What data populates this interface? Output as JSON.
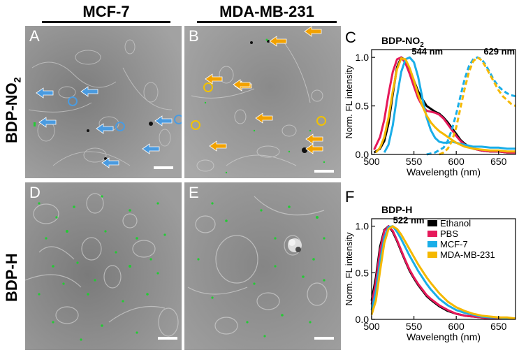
{
  "columns": [
    "MCF-7",
    "MDA-MB-231"
  ],
  "rows": [
    {
      "label": "BDP-NO",
      "sub": "2"
    },
    {
      "label": "BDP-H",
      "sub": ""
    }
  ],
  "panels": {
    "A": "A",
    "B": "B",
    "D": "D",
    "E": "E"
  },
  "colors": {
    "ethanol": "#000000",
    "pbs": "#e6195a",
    "mcf7": "#1aaee8",
    "mda": "#f5b800",
    "arrow_blue": "#4a9be0",
    "arrow_orange": "#f2a200",
    "green": "#22cc33"
  },
  "chart_data": [
    {
      "panel_letter": "C",
      "type": "line",
      "title": "BDP-NO",
      "title_sub": "2",
      "xlabel": "Wavelength (nm)",
      "ylabel": "Norm. FL intensity",
      "xlim": [
        500,
        670
      ],
      "ylim": [
        0,
        1.08
      ],
      "xticks": [
        500,
        550,
        600,
        650
      ],
      "yticks": [
        0.0,
        0.5,
        1.0
      ],
      "annotations": [
        {
          "text": "544 nm",
          "x": 544,
          "y": 1.0
        },
        {
          "text": "629 nm",
          "x": 629,
          "y": 1.0
        }
      ],
      "series": [
        {
          "key": "ethanol",
          "dashed": false,
          "x": [
            503,
            510,
            515,
            520,
            525,
            530,
            535,
            540,
            545,
            550,
            555,
            560,
            565,
            570,
            575,
            580,
            585,
            590,
            595,
            600,
            605,
            610,
            615,
            620,
            630,
            640,
            650,
            660,
            670
          ],
          "y": [
            0.02,
            0.06,
            0.14,
            0.32,
            0.62,
            0.9,
            1.0,
            0.97,
            0.88,
            0.76,
            0.65,
            0.57,
            0.5,
            0.47,
            0.44,
            0.42,
            0.38,
            0.33,
            0.27,
            0.21,
            0.15,
            0.11,
            0.08,
            0.06,
            0.04,
            0.03,
            0.03,
            0.02,
            0.02
          ]
        },
        {
          "key": "pbs",
          "dashed": false,
          "x": [
            503,
            510,
            515,
            520,
            525,
            530,
            535,
            540,
            545,
            550,
            555,
            560,
            565,
            570,
            575,
            580,
            585,
            590,
            595,
            600,
            605,
            610,
            615,
            620,
            630,
            640,
            650,
            660,
            670
          ],
          "y": [
            0.05,
            0.18,
            0.36,
            0.62,
            0.85,
            0.98,
            1.0,
            0.94,
            0.83,
            0.7,
            0.58,
            0.5,
            0.45,
            0.44,
            0.43,
            0.41,
            0.37,
            0.31,
            0.25,
            0.19,
            0.14,
            0.1,
            0.08,
            0.06,
            0.04,
            0.03,
            0.03,
            0.02,
            0.02
          ]
        },
        {
          "key": "mcf7",
          "dashed": false,
          "x": [
            515,
            520,
            525,
            530,
            535,
            540,
            545,
            550,
            555,
            560,
            565,
            570,
            575,
            580,
            585,
            590,
            595,
            600,
            605,
            610,
            615,
            620,
            630,
            640,
            650,
            660,
            670
          ],
          "y": [
            0.02,
            0.1,
            0.3,
            0.6,
            0.85,
            0.98,
            1.0,
            0.95,
            0.8,
            0.58,
            0.38,
            0.25,
            0.17,
            0.13,
            0.12,
            0.12,
            0.13,
            0.12,
            0.11,
            0.1,
            0.09,
            0.08,
            0.08,
            0.07,
            0.07,
            0.06,
            0.06
          ]
        },
        {
          "key": "mda",
          "dashed": false,
          "x": [
            505,
            510,
            515,
            520,
            525,
            530,
            535,
            540,
            545,
            550,
            555,
            560,
            565,
            570,
            575,
            580,
            585,
            590,
            595,
            600,
            605,
            610,
            615,
            620,
            630,
            640,
            650,
            660,
            670
          ],
          "y": [
            0.02,
            0.07,
            0.18,
            0.38,
            0.65,
            0.88,
            0.99,
            0.98,
            0.89,
            0.76,
            0.62,
            0.5,
            0.4,
            0.33,
            0.28,
            0.24,
            0.21,
            0.18,
            0.15,
            0.12,
            0.1,
            0.08,
            0.07,
            0.06,
            0.05,
            0.04,
            0.04,
            0.03,
            0.03
          ]
        },
        {
          "key": "mcf7",
          "dashed": true,
          "x": [
            565,
            575,
            585,
            590,
            595,
            600,
            605,
            610,
            615,
            620,
            625,
            630,
            635,
            640,
            645,
            650,
            655,
            660,
            665,
            670
          ],
          "y": [
            0.0,
            0.02,
            0.07,
            0.14,
            0.26,
            0.42,
            0.6,
            0.78,
            0.91,
            0.98,
            1.0,
            0.98,
            0.92,
            0.84,
            0.76,
            0.7,
            0.66,
            0.63,
            0.61,
            0.6
          ]
        },
        {
          "key": "mda",
          "dashed": true,
          "x": [
            580,
            585,
            590,
            595,
            600,
            605,
            610,
            615,
            620,
            625,
            630,
            635,
            640,
            645,
            650,
            655,
            660,
            665,
            670
          ],
          "y": [
            0.0,
            0.02,
            0.06,
            0.14,
            0.28,
            0.48,
            0.68,
            0.85,
            0.96,
            1.0,
            0.97,
            0.9,
            0.82,
            0.74,
            0.66,
            0.6,
            0.56,
            0.52,
            0.5
          ]
        }
      ]
    },
    {
      "panel_letter": "F",
      "type": "line",
      "title": "BDP-H",
      "title_sub": "",
      "xlabel": "Wavelength (nm)",
      "ylabel": "Norm. FL intensity",
      "xlim": [
        500,
        670
      ],
      "ylim": [
        0,
        1.08
      ],
      "xticks": [
        500,
        550,
        600,
        650
      ],
      "yticks": [
        0.0,
        0.5,
        1.0
      ],
      "annotations": [
        {
          "text": "522 nm",
          "x": 522,
          "y": 1.0
        }
      ],
      "legend": [
        {
          "key": "ethanol",
          "label": "Ethanol"
        },
        {
          "key": "pbs",
          "label": "PBS"
        },
        {
          "key": "mcf7",
          "label": "MCF-7"
        },
        {
          "key": "mda",
          "label": "MDA-MB-231"
        }
      ],
      "series": [
        {
          "key": "ethanol",
          "dashed": false,
          "x": [
            500,
            505,
            510,
            515,
            520,
            525,
            530,
            535,
            540,
            545,
            550,
            555,
            560,
            565,
            570,
            580,
            590,
            600,
            610,
            620,
            630,
            640,
            650,
            660,
            670
          ],
          "y": [
            0.2,
            0.45,
            0.78,
            0.96,
            1.0,
            0.94,
            0.84,
            0.73,
            0.62,
            0.52,
            0.44,
            0.37,
            0.31,
            0.25,
            0.21,
            0.14,
            0.09,
            0.06,
            0.04,
            0.03,
            0.02,
            0.01,
            0.01,
            0.01,
            0.01
          ]
        },
        {
          "key": "pbs",
          "dashed": false,
          "x": [
            500,
            505,
            510,
            515,
            520,
            525,
            530,
            535,
            540,
            545,
            550,
            555,
            560,
            565,
            570,
            580,
            590,
            600,
            610,
            620,
            630,
            640,
            650,
            660,
            670
          ],
          "y": [
            0.16,
            0.4,
            0.74,
            0.95,
            1.0,
            0.95,
            0.85,
            0.74,
            0.63,
            0.53,
            0.45,
            0.38,
            0.32,
            0.26,
            0.22,
            0.15,
            0.1,
            0.06,
            0.04,
            0.03,
            0.02,
            0.01,
            0.01,
            0.01,
            0.01
          ]
        },
        {
          "key": "mcf7",
          "dashed": false,
          "x": [
            500,
            505,
            510,
            515,
            520,
            525,
            530,
            535,
            540,
            545,
            550,
            555,
            560,
            565,
            570,
            580,
            590,
            600,
            610,
            620,
            630,
            640,
            650,
            660,
            670
          ],
          "y": [
            0.1,
            0.3,
            0.62,
            0.88,
            0.99,
            1.0,
            0.94,
            0.86,
            0.77,
            0.68,
            0.6,
            0.52,
            0.45,
            0.38,
            0.32,
            0.22,
            0.15,
            0.1,
            0.07,
            0.05,
            0.03,
            0.02,
            0.02,
            0.01,
            0.01
          ]
        },
        {
          "key": "mda",
          "dashed": false,
          "x": [
            500,
            505,
            510,
            515,
            520,
            525,
            530,
            535,
            540,
            545,
            550,
            555,
            560,
            565,
            570,
            580,
            590,
            600,
            610,
            620,
            630,
            640,
            650,
            660,
            670
          ],
          "y": [
            0.05,
            0.2,
            0.52,
            0.82,
            0.97,
            1.0,
            0.97,
            0.91,
            0.83,
            0.75,
            0.67,
            0.59,
            0.52,
            0.45,
            0.39,
            0.28,
            0.19,
            0.13,
            0.09,
            0.06,
            0.04,
            0.03,
            0.02,
            0.02,
            0.01
          ]
        }
      ]
    }
  ]
}
